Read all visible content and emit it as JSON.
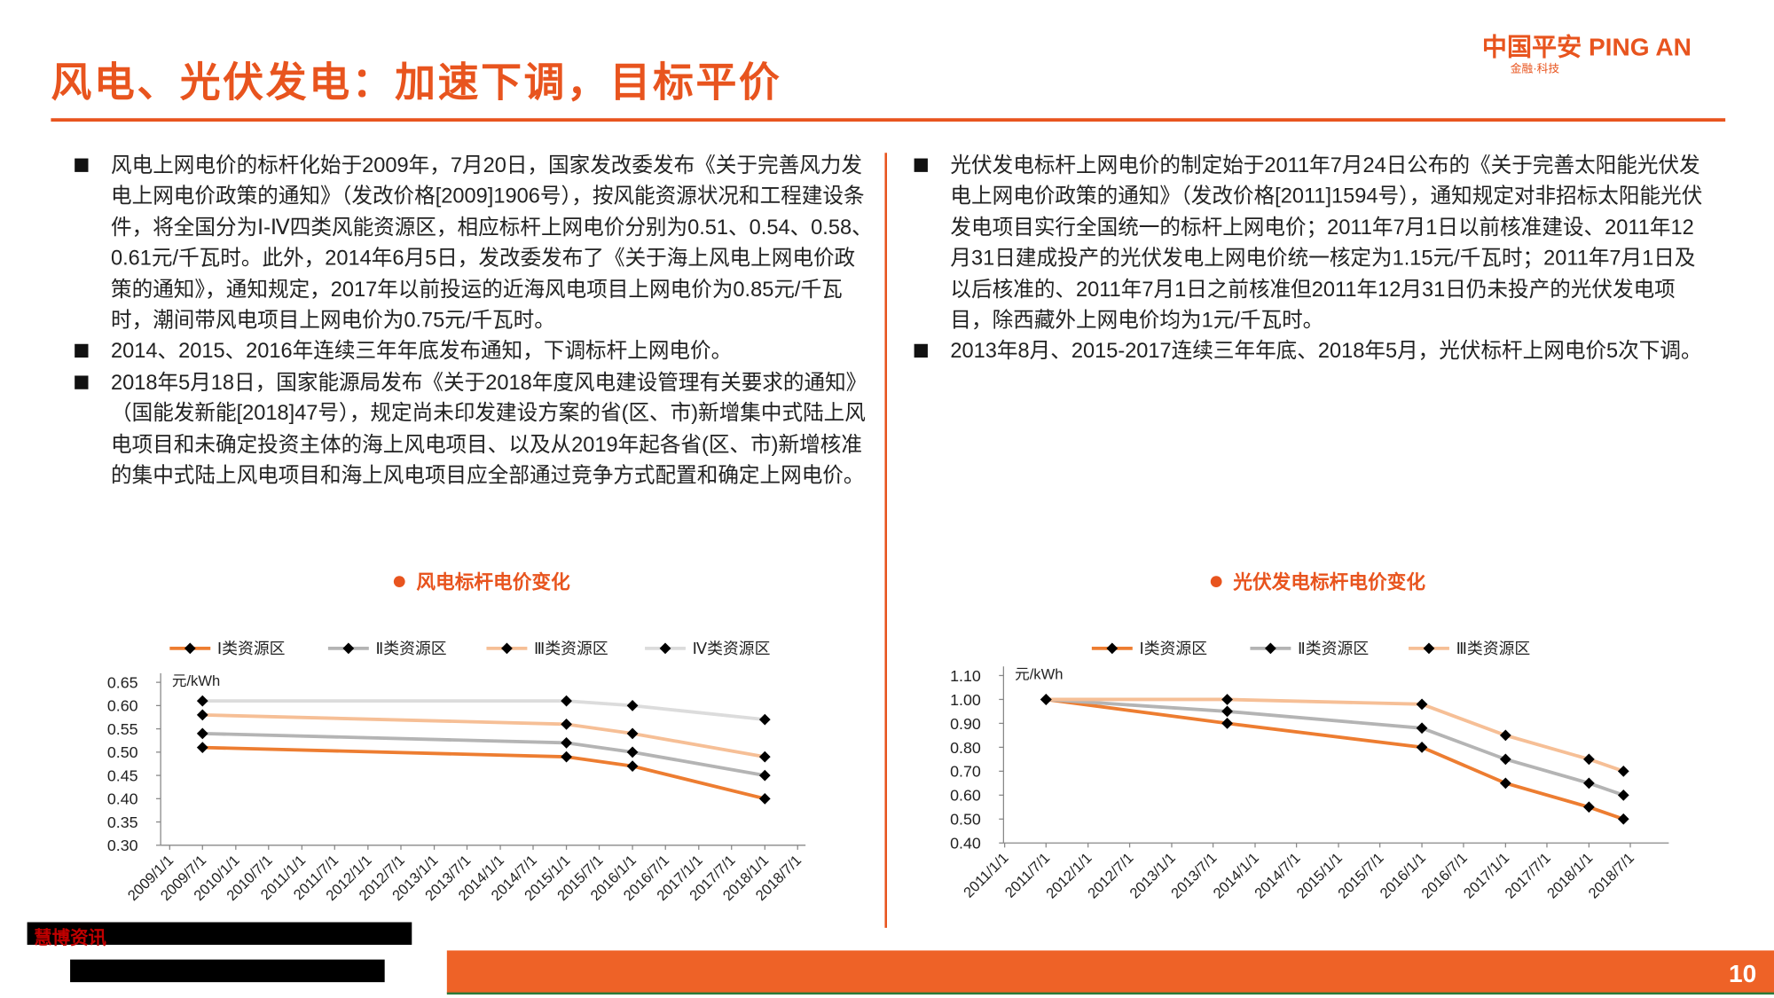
{
  "header": {
    "title": "风电、光伏发电：加速下调，目标平价",
    "logo": "中国平安 PING AN",
    "logo_sub": "金融·科技"
  },
  "left_bullets": [
    "风电上网电价的标杆化始于2009年，7月20日，国家发改委发布《关于完善风力发电上网电价政策的通知》（发改价格[2009]1906号），按风能资源状况和工程建设条件，将全国分为Ⅰ-Ⅳ四类风能资源区，相应标杆上网电价分别为0.51、0.54、0.58、0.61元/千瓦时。此外，2014年6月5日，发改委发布了《关于海上风电上网电价政策的通知》，通知规定，2017年以前投运的近海风电项目上网电价为0.85元/千瓦时，潮间带风电项目上网电价为0.75元/千瓦时。",
    "2014、2015、2016年连续三年年底发布通知，下调标杆上网电价。",
    "2018年5月18日，国家能源局发布《关于2018年度风电建设管理有关要求的通知》（国能发新能[2018]47号），规定尚未印发建设方案的省(区、市)新增集中式陆上风电项目和未确定投资主体的海上风电项目、以及从2019年起各省(区、市)新增核准的集中式陆上风电项目和海上风电项目应全部通过竞争方式配置和确定上网电价。"
  ],
  "right_bullets": [
    "光伏发电标杆上网电价的制定始于2011年7月24日公布的《关于完善太阳能光伏发电上网电价政策的通知》（发改价格[2011]1594号），通知规定对非招标太阳能光伏发电项目实行全国统一的标杆上网电价；2011年7月1日以前核准建设、2011年12月31日建成投产的光伏发电上网电价统一核定为1.15元/千瓦时；2011年7月1日及以后核准的、2011年7月1日之前核准但2011年12月31日仍未投产的光伏发电项目，除西藏外上网电价均为1元/千瓦时。",
    "2013年8月、2015-2017连续三年年底、2018年5月，光伏标杆上网电价5次下调。"
  ],
  "chart_data": [
    {
      "type": "line",
      "title": "风电标杆电价变化",
      "y_label": "元/kWh",
      "x": [
        "2009/7/1",
        "2015/1/1",
        "2016/1/1",
        "2018/1/1"
      ],
      "xlim": [
        "2009/1/1",
        "2018/7/1"
      ],
      "xticks": [
        "2009/1/1",
        "2009/7/1",
        "2010/1/1",
        "2010/7/1",
        "2011/1/1",
        "2011/7/1",
        "2012/1/1",
        "2012/7/1",
        "2013/1/1",
        "2013/7/1",
        "2014/1/1",
        "2014/7/1",
        "2015/1/1",
        "2015/7/1",
        "2016/1/1",
        "2016/7/1",
        "2017/1/1",
        "2017/7/1",
        "2018/1/1",
        "2018/7/1"
      ],
      "ylim": [
        0.3,
        0.65
      ],
      "yticks": [
        {
          "value": 0.3,
          "label": "0.30"
        },
        {
          "value": 0.35,
          "label": "0.35"
        },
        {
          "value": 0.4,
          "label": "0.40"
        },
        {
          "value": 0.45,
          "label": "0.45"
        },
        {
          "value": 0.5,
          "label": "0.50"
        },
        {
          "value": 0.55,
          "label": "0.55"
        },
        {
          "value": 0.6,
          "label": "0.60"
        },
        {
          "value": 0.65,
          "label": "0.65"
        }
      ],
      "series": [
        {
          "name": "Ⅰ类资源区",
          "color": "#ed7d31",
          "values": [
            0.51,
            0.49,
            0.47,
            0.4
          ]
        },
        {
          "name": "Ⅱ类资源区",
          "color": "#b4b4b4",
          "values": [
            0.54,
            0.52,
            0.5,
            0.45
          ]
        },
        {
          "name": "Ⅲ类资源区",
          "color": "#f6bf96",
          "values": [
            0.58,
            0.56,
            0.54,
            0.49
          ]
        },
        {
          "name": "Ⅳ类资源区",
          "color": "#dcdcdc",
          "values": [
            0.61,
            0.61,
            0.6,
            0.57
          ]
        }
      ]
    },
    {
      "type": "line",
      "title": "光伏发电标杆电价变化",
      "y_label": "元/kWh",
      "x": [
        "2011/7/1",
        "2013/9/1",
        "2016/1/1",
        "2017/1/1",
        "2018/1/1",
        "2018/6/1"
      ],
      "xlim": [
        "2011/1/1",
        "2018/7/1"
      ],
      "xticks": [
        "2011/1/1",
        "2011/7/1",
        "2012/1/1",
        "2012/7/1",
        "2013/1/1",
        "2013/7/1",
        "2014/1/1",
        "2014/7/1",
        "2015/1/1",
        "2015/7/1",
        "2016/1/1",
        "2016/7/1",
        "2017/1/1",
        "2017/7/1",
        "2018/1/1",
        "2018/7/1"
      ],
      "ylim": [
        0.4,
        1.1
      ],
      "yticks": [
        {
          "value": 0.4,
          "label": "0.40"
        },
        {
          "value": 0.5,
          "label": "0.50"
        },
        {
          "value": 0.6,
          "label": "0.60"
        },
        {
          "value": 0.7,
          "label": "0.70"
        },
        {
          "value": 0.8,
          "label": "0.80"
        },
        {
          "value": 0.9,
          "label": "0.90"
        },
        {
          "value": 1.0,
          "label": "1.00"
        },
        {
          "value": 1.1,
          "label": "1.10"
        }
      ],
      "series": [
        {
          "name": "Ⅰ类资源区",
          "color": "#ed7d31",
          "values": [
            1.0,
            0.9,
            0.8,
            0.65,
            0.55,
            0.5
          ]
        },
        {
          "name": "Ⅱ类资源区",
          "color": "#b4b4b4",
          "values": [
            1.0,
            0.95,
            0.88,
            0.75,
            0.65,
            0.6
          ]
        },
        {
          "name": "Ⅲ类资源区",
          "color": "#f6bf96",
          "values": [
            1.0,
            1.0,
            0.98,
            0.85,
            0.75,
            0.7
          ]
        }
      ]
    }
  ],
  "footer": {
    "source": "慧博资讯",
    "page": "10"
  }
}
